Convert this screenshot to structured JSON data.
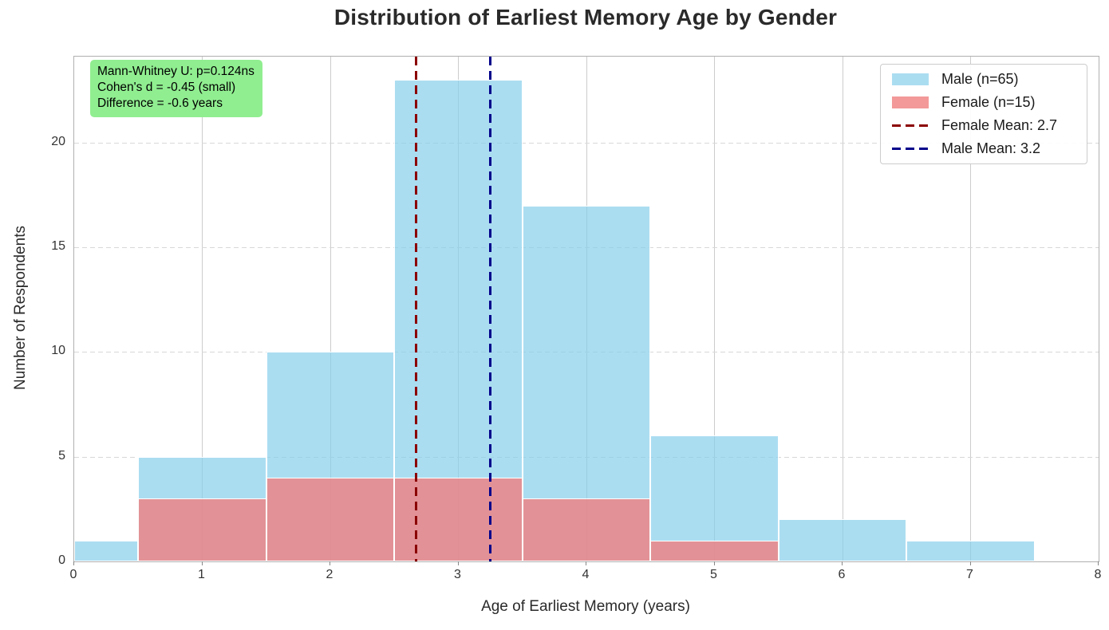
{
  "title": "Distribution of Earliest Memory Age by Gender",
  "chart_data": {
    "type": "bar",
    "subtype": "overlaid-histogram",
    "title": "Distribution of Earliest Memory Age by Gender",
    "xlabel": "Age of Earliest Memory (years)",
    "ylabel": "Number of Respondents",
    "xlim": [
      0,
      8
    ],
    "ylim": [
      0,
      24.1
    ],
    "x_ticks": [
      0,
      1,
      2,
      3,
      4,
      5,
      6,
      7,
      8
    ],
    "y_ticks": [
      0,
      5,
      10,
      15,
      20
    ],
    "bin_width": 1,
    "bin_centers": [
      0,
      1,
      2,
      3,
      4,
      5,
      6,
      7
    ],
    "series": [
      {
        "name": "Male (n=65)",
        "values": [
          1,
          5,
          10,
          23,
          17,
          6,
          2,
          1
        ],
        "color": "rgba(135,206,235,0.7)"
      },
      {
        "name": "Female (n=15)",
        "values": [
          0,
          3,
          4,
          4,
          3,
          1,
          0,
          0
        ],
        "color": "rgba(240,128,128,0.8)"
      }
    ],
    "mean_lines": [
      {
        "label": "Female Mean: 2.7",
        "value": 2.67,
        "color": "#8b0000"
      },
      {
        "label": "Male Mean: 3.2",
        "value": 3.25,
        "color": "#00008b"
      }
    ],
    "annotation": {
      "lines": [
        "Mann-Whitney U: p=0.124ns",
        "Cohen's d = -0.45 (small)",
        "Difference = -0.6 years"
      ],
      "bg_color": "#90ee90"
    },
    "legend": {
      "position": "upper-right",
      "entries": [
        {
          "swatch": "patch",
          "color": "rgba(135,206,235,0.7)",
          "label": "Male (n=65)"
        },
        {
          "swatch": "patch",
          "color": "rgba(240,128,128,0.8)",
          "label": "Female (n=15)"
        },
        {
          "swatch": "dashed-line",
          "color": "#8b0000",
          "label": "Female Mean: 2.7"
        },
        {
          "swatch": "dashed-line",
          "color": "#00008b",
          "label": "Male Mean: 3.2"
        }
      ]
    },
    "grid": {
      "horizontal": "dashed",
      "vertical": "solid",
      "color": "#cccccc"
    }
  }
}
